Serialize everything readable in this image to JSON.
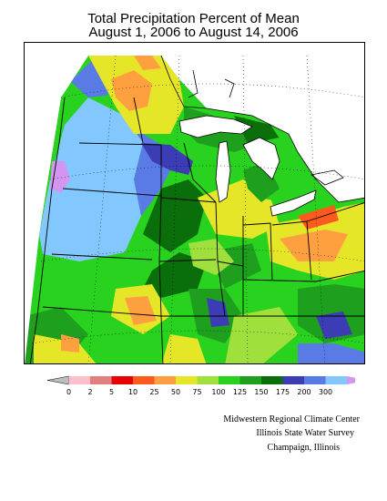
{
  "title": {
    "line1": "Total Precipitation Percent of Mean",
    "line2": "August 1, 2006 to August 14, 2006"
  },
  "legend": {
    "bins": [
      {
        "color": "#bebebe"
      },
      {
        "color": "#ffc0cb"
      },
      {
        "color": "#e08080"
      },
      {
        "color": "#e80000"
      },
      {
        "color": "#ff5a1e"
      },
      {
        "color": "#ffa040"
      },
      {
        "color": "#e6e628"
      },
      {
        "color": "#a0e03c"
      },
      {
        "color": "#28d21e"
      },
      {
        "color": "#1ea01e"
      },
      {
        "color": "#0a6e0a"
      },
      {
        "color": "#3c3cb4"
      },
      {
        "color": "#5a7ae6"
      },
      {
        "color": "#82c8ff"
      },
      {
        "color": "#d296f0"
      }
    ],
    "tick_labels": [
      "0",
      "2",
      "5",
      "10",
      "25",
      "50",
      "75",
      "100",
      "125",
      "150",
      "175",
      "200",
      "300"
    ]
  },
  "credits": {
    "line1": "Midwestern Regional Climate Center",
    "line2": "Illinois State Water Survey",
    "line3": "Champaign, Illinois"
  },
  "colors": {
    "lake": "#ffffff",
    "background": "#ffffff",
    "border": "#000000"
  }
}
